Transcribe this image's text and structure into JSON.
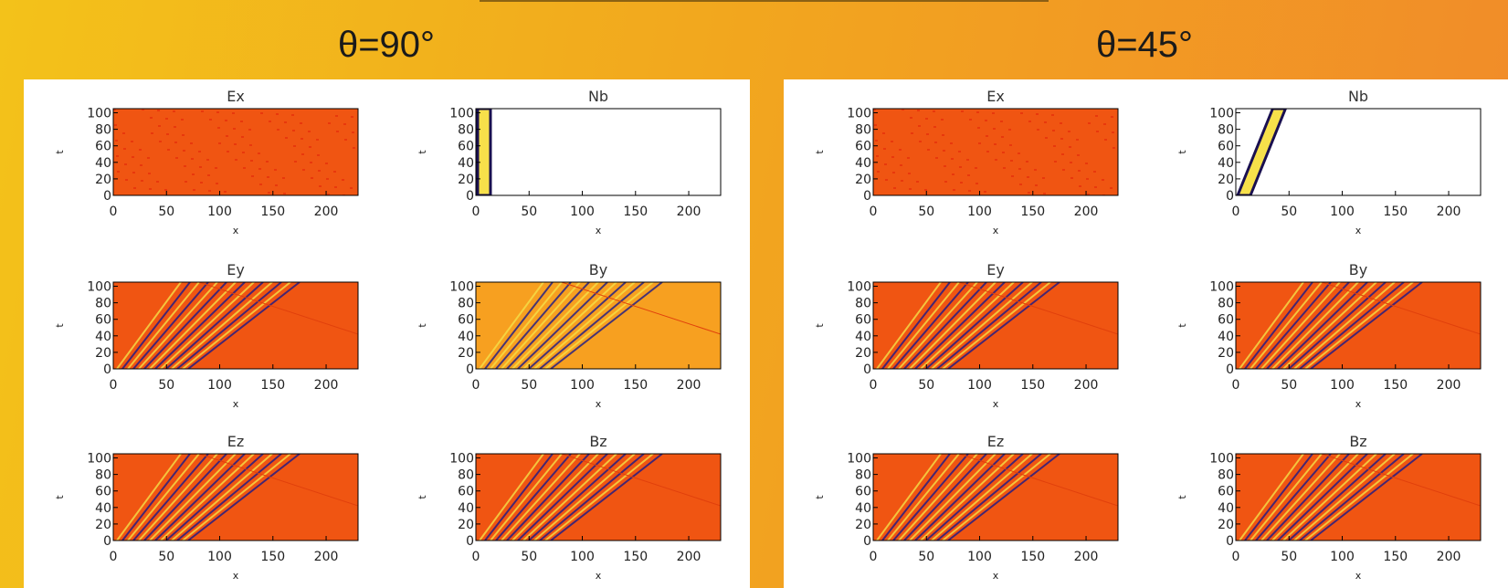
{
  "slide": {
    "panels": [
      {
        "title": "θ=90°",
        "plots": [
          {
            "title": "Ex"
          },
          {
            "title": "Nb"
          },
          {
            "title": "Ey"
          },
          {
            "title": "By"
          },
          {
            "title": "Ez"
          },
          {
            "title": "Bz"
          }
        ]
      },
      {
        "title": "θ=45°",
        "plots": [
          {
            "title": "Ex"
          },
          {
            "title": "Nb"
          },
          {
            "title": "Ey"
          },
          {
            "title": "By"
          },
          {
            "title": "Ez"
          },
          {
            "title": "Bz"
          }
        ]
      }
    ]
  },
  "axes": {
    "xlabel": "x",
    "ylabel": "t",
    "xlim": [
      0,
      230
    ],
    "xticks": [
      0,
      50,
      100,
      150,
      200
    ],
    "ylim": [
      0,
      105
    ],
    "yticks": [
      0,
      20,
      40,
      60,
      80,
      100
    ]
  }
}
